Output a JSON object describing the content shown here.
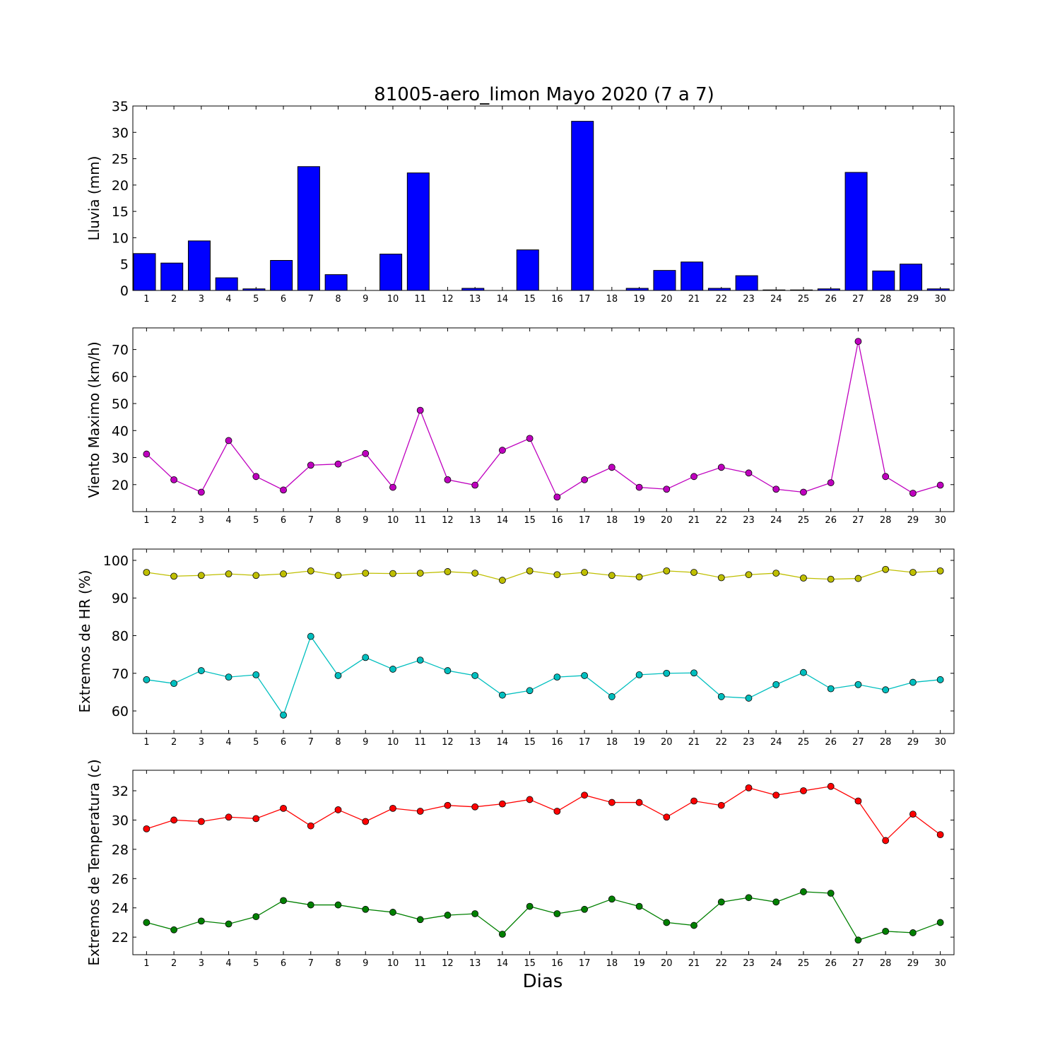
{
  "figure": {
    "title": "81005-aero_limon Mayo 2020  (7 a 7)",
    "xlabel": "Dias"
  },
  "chart_data": [
    {
      "type": "bar",
      "ylabel": "Lluvia (mm)",
      "ylim": [
        0,
        35
      ],
      "yticks": [
        0,
        5,
        10,
        15,
        20,
        25,
        30,
        35
      ],
      "x": [
        1,
        2,
        3,
        4,
        5,
        6,
        7,
        8,
        9,
        10,
        11,
        12,
        13,
        14,
        15,
        16,
        17,
        18,
        19,
        20,
        21,
        22,
        23,
        24,
        25,
        26,
        27,
        28,
        29,
        30
      ],
      "series": [
        {
          "values": [
            7.0,
            5.2,
            9.4,
            2.4,
            0.3,
            5.7,
            23.5,
            3.0,
            0.0,
            6.9,
            22.3,
            0.0,
            0.4,
            0.0,
            7.7,
            0.0,
            32.1,
            0.0,
            0.4,
            3.8,
            5.4,
            0.4,
            2.8,
            0.1,
            0.1,
            0.3,
            22.4,
            3.7,
            5.0,
            0.3
          ],
          "color": "#0000ff"
        }
      ]
    },
    {
      "type": "line",
      "ylabel": "Viento Maximo (km/h)",
      "ylim": [
        10,
        78
      ],
      "yticks": [
        20,
        30,
        40,
        50,
        60,
        70
      ],
      "x": [
        1,
        2,
        3,
        4,
        5,
        6,
        7,
        8,
        9,
        10,
        11,
        12,
        13,
        14,
        15,
        16,
        17,
        18,
        19,
        20,
        21,
        22,
        23,
        24,
        25,
        26,
        27,
        28,
        29,
        30
      ],
      "series": [
        {
          "values": [
            31.3,
            21.8,
            17.2,
            36.3,
            23.0,
            18.0,
            27.2,
            27.6,
            31.5,
            19.0,
            47.5,
            21.8,
            19.8,
            32.7,
            37.1,
            15.4,
            21.8,
            26.4,
            19.0,
            18.3,
            23.0,
            26.4,
            24.3,
            18.3,
            17.2,
            20.7,
            73.0,
            23.0,
            16.8,
            19.8
          ],
          "color": "#bf00bf"
        }
      ]
    },
    {
      "type": "line",
      "ylabel": "Extremos de HR (%)",
      "ylim": [
        54,
        103
      ],
      "yticks": [
        60,
        70,
        80,
        90,
        100
      ],
      "x": [
        1,
        2,
        3,
        4,
        5,
        6,
        7,
        8,
        9,
        10,
        11,
        12,
        13,
        14,
        15,
        16,
        17,
        18,
        19,
        20,
        21,
        22,
        23,
        24,
        25,
        26,
        27,
        28,
        29,
        30
      ],
      "series": [
        {
          "values": [
            96.8,
            95.8,
            96.0,
            96.4,
            96.0,
            96.4,
            97.2,
            96.0,
            96.6,
            96.5,
            96.6,
            97.0,
            96.6,
            94.7,
            97.2,
            96.2,
            96.8,
            96.0,
            95.6,
            97.2,
            96.8,
            95.4,
            96.2,
            96.6,
            95.3,
            95.0,
            95.2,
            97.6,
            96.8,
            97.2
          ],
          "color": "#bfbf00"
        },
        {
          "values": [
            68.3,
            67.3,
            70.7,
            69.0,
            69.6,
            58.9,
            79.8,
            69.4,
            74.2,
            71.1,
            73.5,
            70.7,
            69.4,
            64.2,
            65.4,
            69.0,
            69.4,
            63.8,
            69.6,
            70.0,
            70.1,
            63.8,
            63.4,
            67.0,
            70.2,
            65.9,
            67.0,
            65.6,
            67.6,
            68.3
          ],
          "color": "#00bfbf"
        }
      ]
    },
    {
      "type": "line",
      "ylabel": "Extremos de Temperatura (c)",
      "ylim": [
        20.8,
        33.4
      ],
      "yticks": [
        22,
        24,
        26,
        28,
        30,
        32
      ],
      "x": [
        1,
        2,
        3,
        4,
        5,
        6,
        7,
        8,
        9,
        10,
        11,
        12,
        13,
        14,
        15,
        16,
        17,
        18,
        19,
        20,
        21,
        22,
        23,
        24,
        25,
        26,
        27,
        28,
        29,
        30
      ],
      "series": [
        {
          "values": [
            29.4,
            30.0,
            29.9,
            30.2,
            30.1,
            30.8,
            29.6,
            30.7,
            29.9,
            30.8,
            30.6,
            31.0,
            30.9,
            31.1,
            31.4,
            30.6,
            31.7,
            31.2,
            31.2,
            30.2,
            31.3,
            31.0,
            32.2,
            31.7,
            32.0,
            32.3,
            31.3,
            28.6,
            30.4,
            29.0
          ],
          "color": "#ff0000"
        },
        {
          "values": [
            23.0,
            22.5,
            23.1,
            22.9,
            23.4,
            24.5,
            24.2,
            24.2,
            23.9,
            23.7,
            23.2,
            23.5,
            23.6,
            22.2,
            24.1,
            23.6,
            23.9,
            24.6,
            24.1,
            23.0,
            22.8,
            24.4,
            24.7,
            24.4,
            25.1,
            25.0,
            21.8,
            22.4,
            22.3,
            23.0
          ],
          "color": "#008000"
        }
      ]
    }
  ]
}
